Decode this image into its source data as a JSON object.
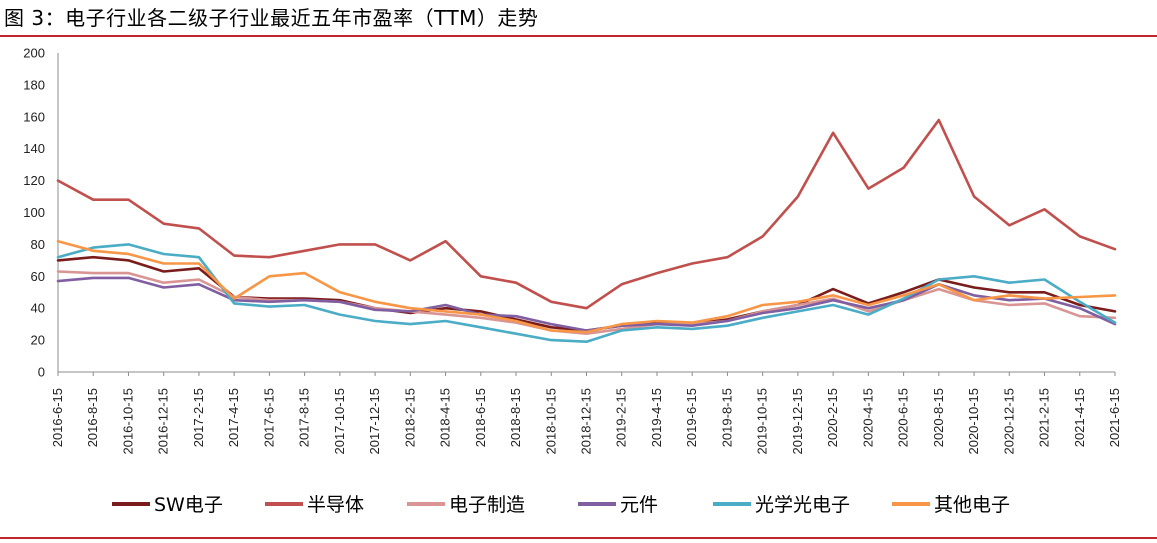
{
  "title": "图 3：电子行业各二级子行业最近五年市盈率（TTM）走势",
  "chart_data": {
    "type": "line",
    "title": "图 3：电子行业各二级子行业最近五年市盈率（TTM）走势",
    "xlabel": "",
    "ylabel": "",
    "ylim": [
      0,
      200
    ],
    "yticks": [
      "0",
      "20",
      "40",
      "60",
      "80",
      "100",
      "120",
      "140",
      "160",
      "180",
      "200"
    ],
    "grid": false,
    "legend_position": "bottom",
    "categories": [
      "2016-6-15",
      "2016-8-15",
      "2016-10-15",
      "2016-12-15",
      "2017-2-15",
      "2017-4-15",
      "2017-6-15",
      "2017-8-15",
      "2017-10-15",
      "2017-12-15",
      "2018-2-15",
      "2018-4-15",
      "2018-6-15",
      "2018-8-15",
      "2018-10-15",
      "2018-12-15",
      "2019-2-15",
      "2019-4-15",
      "2019-6-15",
      "2019-8-15",
      "2019-10-15",
      "2019-12-15",
      "2020-2-15",
      "2020-4-15",
      "2020-6-15",
      "2020-8-15",
      "2020-10-15",
      "2020-12-15",
      "2021-2-15",
      "2021-4-15",
      "2021-6-15"
    ],
    "series": [
      {
        "name": "SW电子",
        "color": "#7b1c1c",
        "values": [
          70,
          72,
          70,
          63,
          65,
          47,
          46,
          46,
          45,
          40,
          37,
          40,
          38,
          33,
          28,
          26,
          29,
          31,
          30,
          33,
          38,
          42,
          52,
          43,
          50,
          58,
          53,
          50,
          50,
          42,
          38
        ]
      },
      {
        "name": "半导体",
        "color": "#c0504d",
        "values": [
          120,
          108,
          108,
          93,
          90,
          73,
          72,
          76,
          80,
          80,
          70,
          82,
          60,
          56,
          44,
          40,
          55,
          62,
          68,
          72,
          85,
          110,
          150,
          115,
          128,
          158,
          110,
          92,
          102,
          85,
          77
        ]
      },
      {
        "name": "电子制造",
        "color": "#d99594",
        "values": [
          63,
          62,
          62,
          56,
          58,
          47,
          45,
          45,
          44,
          40,
          38,
          36,
          34,
          31,
          26,
          24,
          27,
          30,
          30,
          32,
          38,
          42,
          46,
          38,
          45,
          52,
          45,
          42,
          43,
          35,
          34
        ]
      },
      {
        "name": "元件",
        "color": "#7f5fa1",
        "values": [
          57,
          59,
          59,
          53,
          55,
          45,
          44,
          45,
          44,
          39,
          38,
          42,
          36,
          35,
          30,
          26,
          29,
          30,
          29,
          32,
          37,
          40,
          45,
          40,
          45,
          55,
          48,
          45,
          46,
          40,
          30
        ]
      },
      {
        "name": "光学光电子",
        "color": "#4bacc6",
        "values": [
          72,
          78,
          80,
          74,
          72,
          43,
          41,
          42,
          36,
          32,
          30,
          32,
          28,
          24,
          20,
          19,
          26,
          28,
          27,
          29,
          34,
          38,
          42,
          36,
          46,
          58,
          60,
          56,
          58,
          44,
          31
        ]
      },
      {
        "name": "其他电子",
        "color": "#f79646",
        "values": [
          82,
          76,
          74,
          68,
          68,
          46,
          60,
          62,
          50,
          44,
          40,
          38,
          36,
          32,
          26,
          25,
          30,
          32,
          31,
          35,
          42,
          44,
          48,
          42,
          48,
          55,
          45,
          48,
          46,
          47,
          48
        ]
      }
    ]
  }
}
